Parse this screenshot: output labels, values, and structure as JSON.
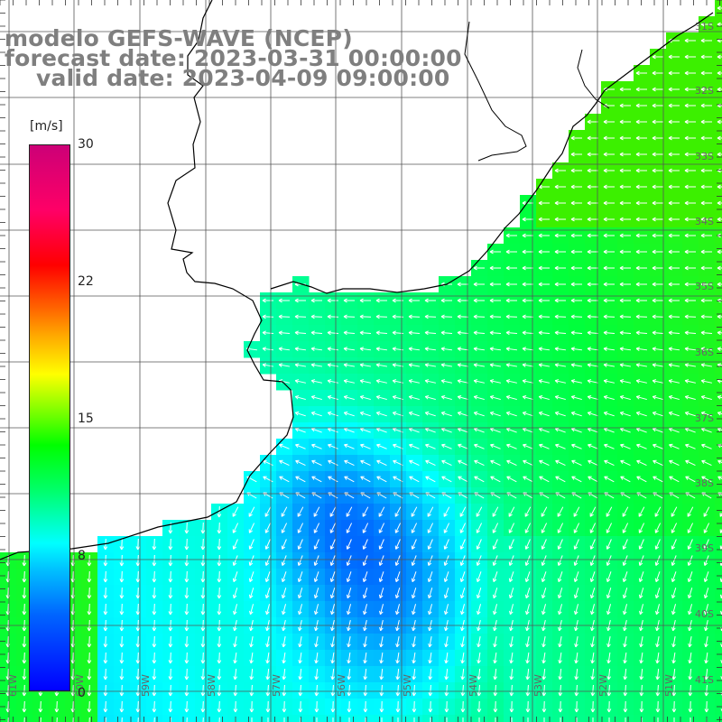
{
  "title": {
    "model": "modelo GEFS-WAVE (NCEP)",
    "forecast": "forecast date: 2023-03-31 00:00:00",
    "valid": "valid date: 2023-04-09 09:00:00"
  },
  "colorbar": {
    "unit": "[m/s]",
    "ticks": [
      "30",
      "22",
      "15",
      "8",
      "0"
    ],
    "colors": [
      "#0000ff",
      "#00bfff",
      "#00ffff",
      "#00ff00",
      "#ffff00",
      "#ff6600",
      "#ff0000",
      "#cc0077"
    ]
  },
  "latitude_labels": [
    "31S",
    "32S",
    "33S",
    "34S",
    "35S",
    "36S",
    "37S",
    "38S",
    "39S",
    "40S",
    "41S"
  ],
  "longitude_labels": [
    "61W",
    "60W",
    "59W",
    "58W",
    "57W",
    "56W",
    "55W",
    "54W",
    "53W",
    "52W",
    "51W"
  ],
  "colors": {
    "land": "#ffffff",
    "coast": "#000000",
    "grid": "#555555",
    "arrow": "#ffffff"
  }
}
